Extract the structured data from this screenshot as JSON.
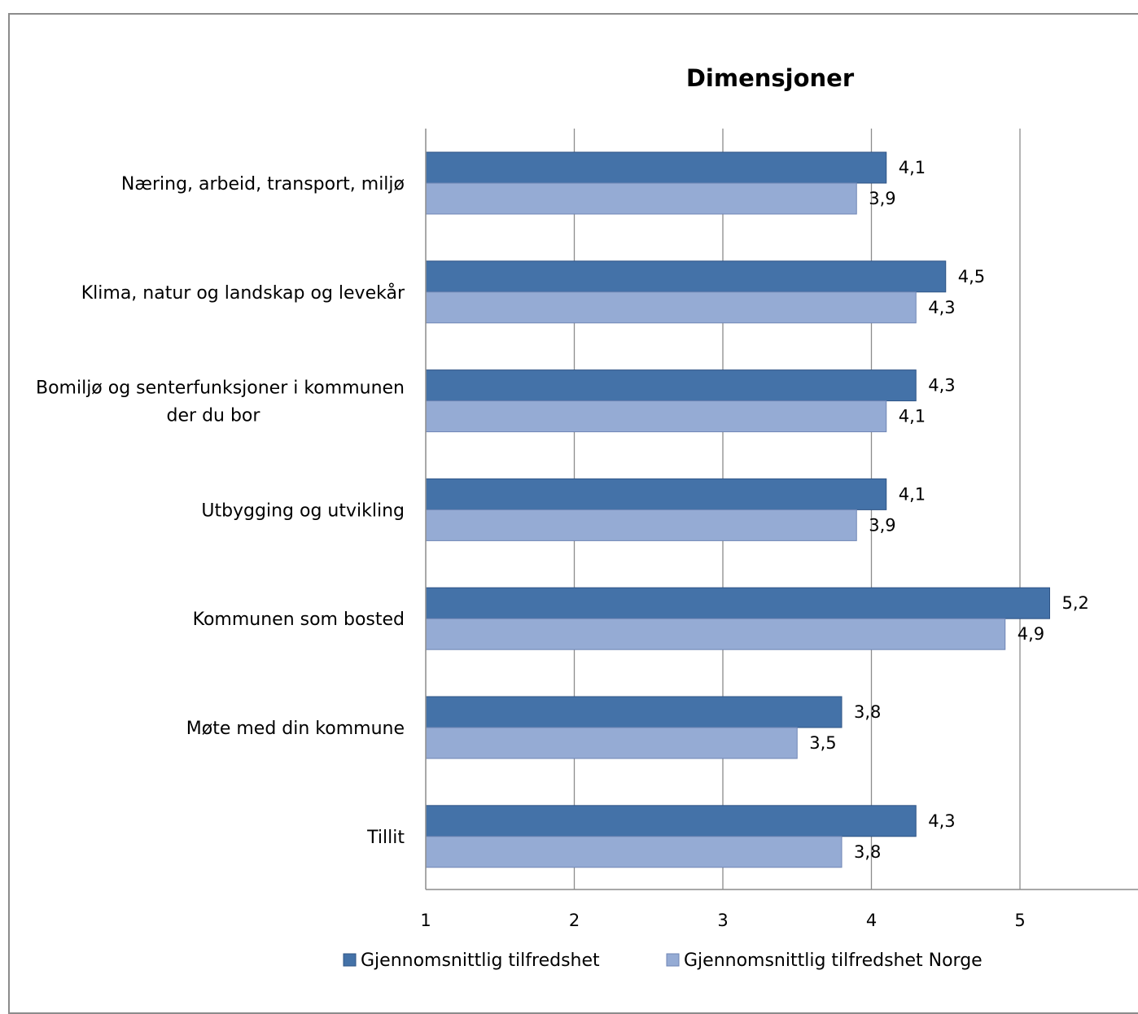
{
  "chart_data": {
    "type": "bar",
    "orientation": "horizontal",
    "title": "Dimensjoner",
    "categories": [
      [
        "Næring, arbeid, transport, miljø"
      ],
      [
        "Klima, natur og landskap og levekår"
      ],
      [
        "Bomiljø og senterfunksjoner i kommunen",
        "der du bor"
      ],
      [
        "Utbygging og utvikling"
      ],
      [
        "Kommunen som bosted"
      ],
      [
        "Møte med din kommune"
      ],
      [
        "Tillit"
      ]
    ],
    "series": [
      {
        "name": "Gjennomsnittlig tilfredshet",
        "color": "#4472a8",
        "values": [
          4.1,
          4.5,
          4.3,
          4.1,
          5.2,
          3.8,
          4.3
        ],
        "labels": [
          "4,1",
          "4,5",
          "4,3",
          "4,1",
          "5,2",
          "3,8",
          "4,3"
        ]
      },
      {
        "name": "Gjennomsnittlig tilfredshet Norge",
        "color": "#95abd4",
        "values": [
          3.9,
          4.3,
          4.1,
          3.9,
          4.9,
          3.5,
          3.8
        ],
        "labels": [
          "3,9",
          "4,3",
          "4,1",
          "3,9",
          "4,9",
          "3,5",
          "3,8"
        ]
      }
    ],
    "xlim": [
      1,
      6
    ],
    "xticks": [
      "1",
      "2",
      "3",
      "4",
      "5"
    ],
    "grid": true,
    "legend": "bottom",
    "xlabel": "",
    "ylabel": ""
  }
}
